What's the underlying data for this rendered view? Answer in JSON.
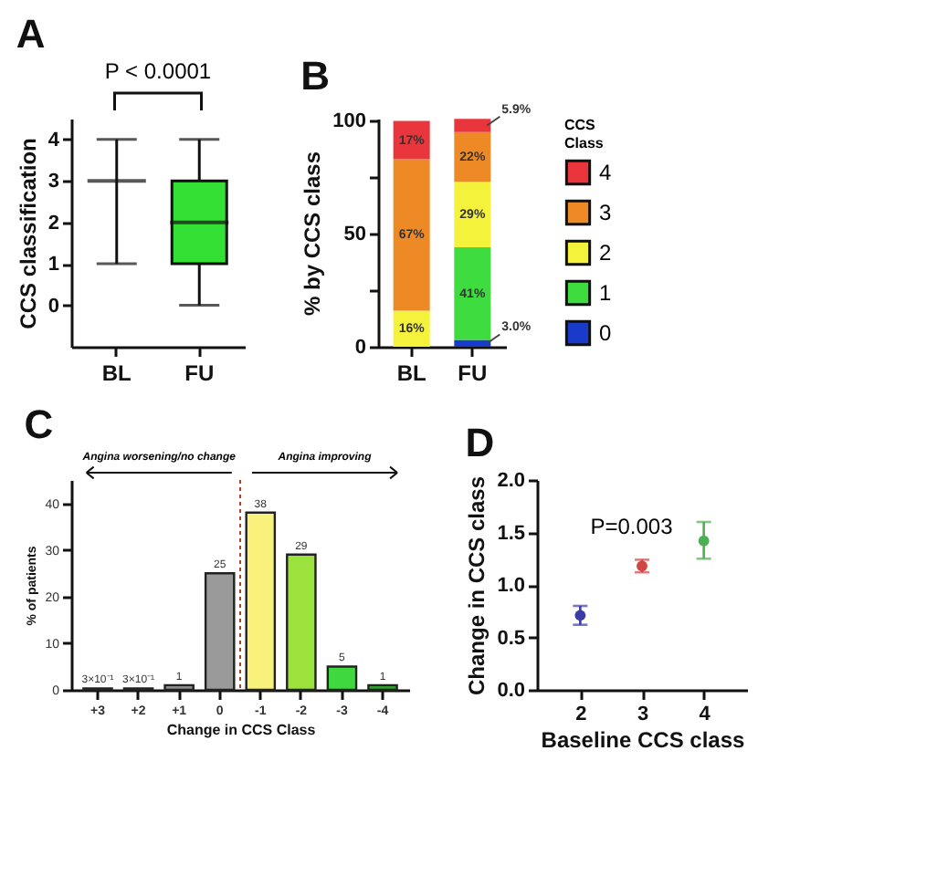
{
  "chart_data": [
    {
      "type": "box",
      "title": "A",
      "categories": [
        "BL",
        "FU"
      ],
      "boxes": [
        {
          "low": 1,
          "q1": 3,
          "median": 3,
          "q3": 3,
          "high": 4
        },
        {
          "low": 0,
          "q1": 1,
          "median": 2,
          "q3": 3,
          "high": 4
        }
      ],
      "colors": [
        null,
        "#33e033"
      ],
      "ylabel": "CCS classification",
      "ylim": [
        -1,
        4.5
      ],
      "yticks": [
        0,
        1,
        2,
        3,
        4
      ],
      "annotations": [
        "P < 0.0001"
      ]
    },
    {
      "type": "bar",
      "stacked": true,
      "title": "B",
      "categories": [
        "BL",
        "FU"
      ],
      "series": [
        {
          "name": "0",
          "color": "#1a3bc9",
          "values": [
            0,
            3.0
          ],
          "value_labels": [
            null,
            "3.0%"
          ]
        },
        {
          "name": "1",
          "color": "#3fdc3f",
          "values": [
            0,
            41
          ],
          "value_labels": [
            null,
            "41%"
          ]
        },
        {
          "name": "2",
          "color": "#f5f23c",
          "values": [
            16,
            29
          ],
          "value_labels": [
            "16%",
            "29%"
          ]
        },
        {
          "name": "3",
          "color": "#ee8a26",
          "values": [
            67,
            22
          ],
          "value_labels": [
            "67%",
            "22%"
          ]
        },
        {
          "name": "4",
          "color": "#e8363c",
          "values": [
            17,
            5.9
          ],
          "value_labels": [
            "17%",
            "5.9%"
          ]
        }
      ],
      "legend": "right",
      "legend_title": "CCS Class",
      "ylabel": "% by CCS class",
      "ylim": [
        0,
        101
      ],
      "yticks": [
        0,
        {
          "value": 25,
          "label": null
        },
        50,
        {
          "value": 75,
          "label": null
        },
        100
      ]
    },
    {
      "type": "bar",
      "title": "C",
      "categories": [
        "+3",
        "+2",
        "+1",
        "0",
        "-1",
        "-2",
        "-3",
        "-4"
      ],
      "values": [
        0.3,
        0.3,
        1,
        25,
        38,
        29,
        5,
        1
      ],
      "colors": [
        "#8c8c8c",
        "#8c8c8c",
        "#8c8c8c",
        "#9a9a9a",
        "#f8f27c",
        "#9be33c",
        "#3fd93f",
        "#2f9e2f"
      ],
      "value_labels": [
        "3×10⁻¹",
        "3×10⁻¹",
        "1",
        "25",
        "38",
        "29",
        "5",
        "1"
      ],
      "xlabel": "Change in CCS Class",
      "ylabel": "% of patients",
      "ylim": [
        0,
        45
      ],
      "yticks": [
        0,
        10,
        20,
        30,
        40
      ],
      "ref_lines": [
        {
          "axis": "x",
          "value": "-1",
          "color": "#c0392b",
          "line_style": "dotted"
        }
      ],
      "annotations": [
        "Angina worsening/no change",
        "Angina improving"
      ]
    },
    {
      "type": "scatter",
      "title": "D",
      "categories": [
        "2",
        "3",
        "4"
      ],
      "values": [
        0.71,
        1.18,
        1.42
      ],
      "colors": [
        "#3b3ba8",
        "#d04545",
        "#4caf50"
      ],
      "errors": [
        [
          0.62,
          0.8
        ],
        [
          1.12,
          1.24
        ],
        [
          1.25,
          1.6
        ]
      ],
      "xlabel": "Baseline CCS class",
      "ylabel": "Change in CCS class",
      "ylim": [
        0,
        2
      ],
      "yticks": [
        {
          "value": 0,
          "label": "0.0"
        },
        {
          "value": 0.5,
          "label": "0.5"
        },
        {
          "value": 1,
          "label": "1.0"
        },
        {
          "value": 1.5,
          "label": "1.5"
        },
        {
          "value": 2,
          "label": "2.0"
        }
      ],
      "marker": "circle",
      "annotations": [
        "P=0.003"
      ]
    }
  ]
}
